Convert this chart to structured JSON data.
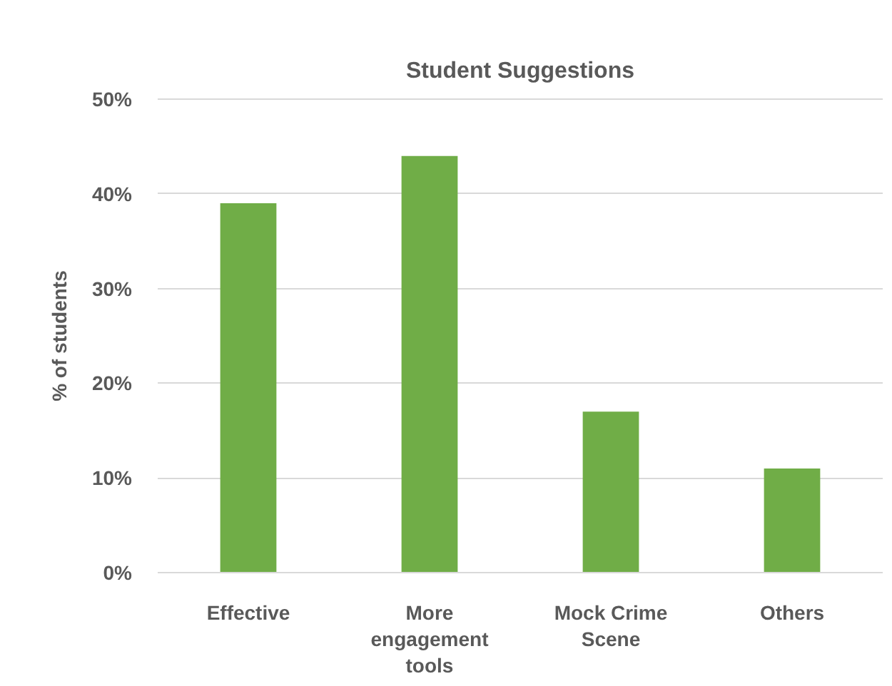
{
  "chart_data": {
    "type": "bar",
    "title": "Student Suggestions",
    "ylabel": "% of students",
    "categories": [
      "Effective",
      "More engagement tools",
      "Mock Crime Scene",
      "Others"
    ],
    "values": [
      39,
      44,
      17,
      11
    ],
    "color": "#70ad47",
    "ylim": [
      0,
      50
    ],
    "yticks": [
      {
        "value": 0,
        "label": "0%"
      },
      {
        "value": 10,
        "label": "10%"
      },
      {
        "value": 20,
        "label": "20%"
      },
      {
        "value": 30,
        "label": "30%"
      },
      {
        "value": 40,
        "label": "40%"
      },
      {
        "value": 50,
        "label": "50%"
      }
    ],
    "grid": "y"
  }
}
